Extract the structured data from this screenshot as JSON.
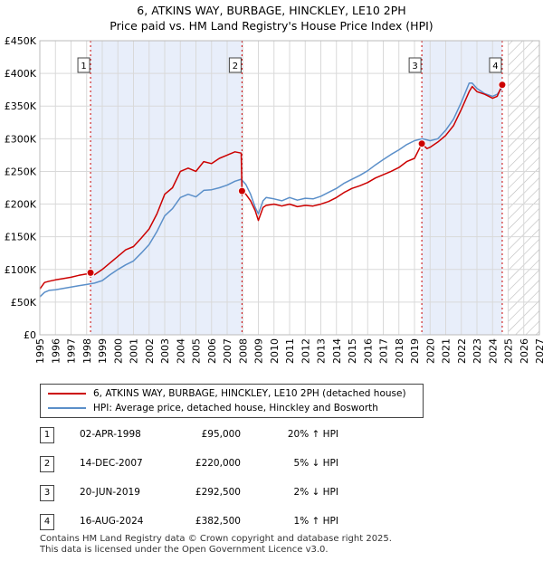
{
  "title": "6, ATKINS WAY, BURBAGE, HINCKLEY, LE10 2PH",
  "subtitle": "Price paid vs. HM Land Registry's House Price Index (HPI)",
  "chart_data": {
    "type": "line",
    "title": "Price paid vs. HM Land Registry's House Price Index (HPI)",
    "xlabel": "",
    "ylabel": "",
    "xlim": [
      1995,
      2027
    ],
    "ylim": [
      0,
      450000
    ],
    "y_ticks": [
      0,
      50000,
      100000,
      150000,
      200000,
      250000,
      300000,
      350000,
      400000,
      450000
    ],
    "y_tick_labels": [
      "£0",
      "£50K",
      "£100K",
      "£150K",
      "£200K",
      "£250K",
      "£300K",
      "£350K",
      "£400K",
      "£450K"
    ],
    "x_ticks": [
      1995,
      1996,
      1997,
      1998,
      1999,
      2000,
      2001,
      2002,
      2003,
      2004,
      2005,
      2006,
      2007,
      2008,
      2009,
      2010,
      2011,
      2012,
      2013,
      2014,
      2015,
      2016,
      2017,
      2018,
      2019,
      2020,
      2021,
      2022,
      2023,
      2024,
      2025,
      2026,
      2027
    ],
    "x_tick_labels": [
      "1995",
      "1996",
      "1997",
      "1998",
      "1999",
      "2000",
      "2001",
      "2002",
      "2003",
      "2004",
      "2005",
      "2006",
      "2007",
      "2008",
      "2009",
      "2010",
      "2011",
      "2012",
      "2013",
      "2014",
      "2015",
      "2016",
      "2017",
      "2018",
      "2019",
      "2020",
      "2021",
      "2022",
      "2023",
      "2024",
      "2025",
      "2026",
      "2027"
    ],
    "grid": true,
    "future_hatch_from": 2025.0,
    "series": [
      {
        "name": "6, ATKINS WAY, BURBAGE, HINCKLEY, LE10 2PH (detached house)",
        "color": "#cc0000",
        "x": [
          1995.0,
          1995.3,
          1995.6,
          1996.0,
          1996.5,
          1997.0,
          1997.5,
          1998.0,
          1998.25,
          1998.5,
          1999.0,
          1999.5,
          2000.0,
          2000.5,
          2001.0,
          2001.5,
          2002.0,
          2002.5,
          2003.0,
          2003.5,
          2004.0,
          2004.5,
          2005.0,
          2005.5,
          2006.0,
          2006.5,
          2007.0,
          2007.5,
          2007.9,
          2007.95,
          2008.2,
          2008.5,
          2008.8,
          2009.0,
          2009.3,
          2009.5,
          2010.0,
          2010.5,
          2011.0,
          2011.5,
          2012.0,
          2012.5,
          2013.0,
          2013.5,
          2014.0,
          2014.5,
          2015.0,
          2015.5,
          2016.0,
          2016.5,
          2017.0,
          2017.5,
          2018.0,
          2018.5,
          2019.0,
          2019.47,
          2019.8,
          2020.0,
          2020.5,
          2021.0,
          2021.5,
          2022.0,
          2022.5,
          2022.7,
          2023.0,
          2023.5,
          2024.0,
          2024.3,
          2024.62,
          2024.8
        ],
        "values": [
          70000,
          80000,
          82000,
          84000,
          86000,
          88000,
          91000,
          93000,
          95000,
          92000,
          100000,
          110000,
          120000,
          130000,
          135000,
          148000,
          162000,
          185000,
          215000,
          225000,
          250000,
          255000,
          250000,
          265000,
          262000,
          270000,
          275000,
          280000,
          278000,
          220000,
          215000,
          205000,
          190000,
          175000,
          195000,
          198000,
          200000,
          197000,
          200000,
          196000,
          198000,
          197000,
          200000,
          204000,
          210000,
          218000,
          224000,
          228000,
          233000,
          240000,
          245000,
          250000,
          256000,
          265000,
          270000,
          292500,
          285000,
          287000,
          295000,
          305000,
          320000,
          345000,
          372000,
          380000,
          372000,
          368000,
          362000,
          365000,
          382500,
          384000
        ]
      },
      {
        "name": "HPI: Average price, detached house, Hinckley and Bosworth",
        "color": "#5b8fc9",
        "x": [
          1995.0,
          1995.3,
          1995.6,
          1996.0,
          1996.5,
          1997.0,
          1997.5,
          1998.0,
          1998.5,
          1999.0,
          1999.5,
          2000.0,
          2000.5,
          2001.0,
          2001.5,
          2002.0,
          2002.5,
          2003.0,
          2003.5,
          2004.0,
          2004.5,
          2005.0,
          2005.5,
          2006.0,
          2006.5,
          2007.0,
          2007.5,
          2007.9,
          2008.2,
          2008.5,
          2008.8,
          2009.0,
          2009.3,
          2009.5,
          2010.0,
          2010.5,
          2011.0,
          2011.5,
          2012.0,
          2012.5,
          2013.0,
          2013.5,
          2014.0,
          2014.5,
          2015.0,
          2015.5,
          2016.0,
          2016.5,
          2017.0,
          2017.5,
          2018.0,
          2018.5,
          2019.0,
          2019.5,
          2020.0,
          2020.5,
          2021.0,
          2021.5,
          2022.0,
          2022.5,
          2022.7,
          2023.0,
          2023.5,
          2024.0,
          2024.3,
          2024.62,
          2024.8
        ],
        "values": [
          58000,
          65000,
          68000,
          69000,
          71000,
          73000,
          75000,
          77000,
          79000,
          83000,
          92000,
          100000,
          107000,
          113000,
          125000,
          138000,
          158000,
          182000,
          193000,
          210000,
          215000,
          211000,
          221000,
          222000,
          225000,
          229000,
          235000,
          238000,
          230000,
          215000,
          195000,
          185000,
          205000,
          210000,
          208000,
          205000,
          210000,
          206000,
          209000,
          208000,
          212000,
          218000,
          224000,
          232000,
          238000,
          244000,
          251000,
          260000,
          268000,
          276000,
          283000,
          291000,
          297000,
          300000,
          297000,
          300000,
          313000,
          330000,
          356000,
          385000,
          385000,
          377000,
          369000,
          365000,
          368000,
          378000,
          381000
        ]
      }
    ],
    "sales": [
      {
        "label": "1",
        "x": 1998.25,
        "value": 95000
      },
      {
        "label": "2",
        "x": 2007.95,
        "value": 220000
      },
      {
        "label": "3",
        "x": 2019.47,
        "value": 292500
      },
      {
        "label": "4",
        "x": 2024.62,
        "value": 382500
      }
    ],
    "shaded_periods": [
      [
        1998.25,
        2007.95
      ],
      [
        2019.47,
        2024.62
      ]
    ]
  },
  "legend": {
    "entries": [
      {
        "label": "6, ATKINS WAY, BURBAGE, HINCKLEY, LE10 2PH (detached house)",
        "color": "#cc0000"
      },
      {
        "label": "HPI: Average price, detached house, Hinckley and Bosworth",
        "color": "#5b8fc9"
      }
    ]
  },
  "sales_table": [
    {
      "num": "1",
      "date": "02-APR-1998",
      "price": "£95,000",
      "delta": "20% ↑ HPI"
    },
    {
      "num": "2",
      "date": "14-DEC-2007",
      "price": "£220,000",
      "delta": "5% ↓ HPI"
    },
    {
      "num": "3",
      "date": "20-JUN-2019",
      "price": "£292,500",
      "delta": "2% ↓ HPI"
    },
    {
      "num": "4",
      "date": "16-AUG-2024",
      "price": "£382,500",
      "delta": "1% ↑ HPI"
    }
  ],
  "footer": {
    "line1": "Contains HM Land Registry data © Crown copyright and database right 2025.",
    "line2": "This data is licensed under the Open Government Licence v3.0."
  }
}
